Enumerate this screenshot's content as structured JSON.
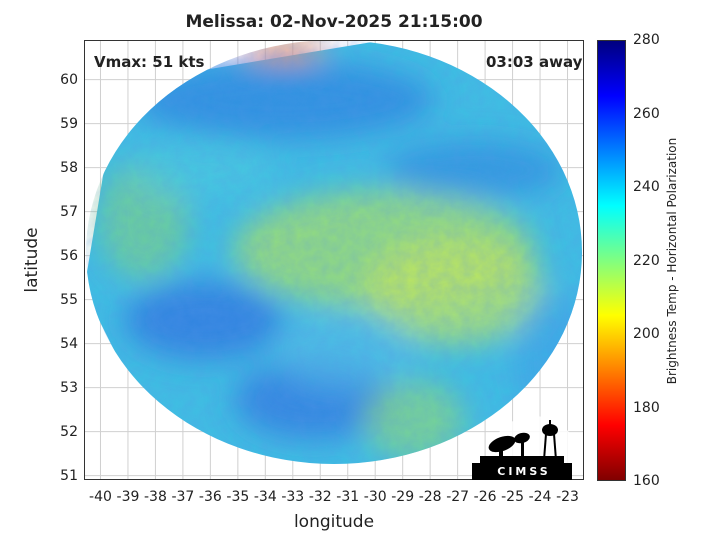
{
  "title": "Melissa: 02-Nov-2025 21:15:00",
  "vmax": "Vmax: 51 kts",
  "away": "03:03 away",
  "colorbar": {
    "label": "Brightness Temp - Horizontal Polarization",
    "ticks": [
      "280",
      "260",
      "240",
      "220",
      "200",
      "180",
      "160"
    ],
    "range": [
      160,
      280
    ],
    "colors": [
      "#800000",
      "#ff0000",
      "#ff8000",
      "#ffff00",
      "#80ff80",
      "#00ffff",
      "#0080ff",
      "#0000ff",
      "#000080"
    ]
  },
  "axes": {
    "xlabel": "longitude",
    "ylabel": "latitude",
    "xticks": [
      "-40",
      "-39",
      "-38",
      "-37",
      "-36",
      "-35",
      "-34",
      "-33",
      "-32",
      "-31",
      "-30",
      "-29",
      "-28",
      "-27",
      "-26",
      "-25",
      "-24",
      "-23"
    ],
    "yticks": [
      "60",
      "59",
      "58",
      "57",
      "56",
      "55",
      "54",
      "53",
      "52",
      "51"
    ],
    "xlim": [
      -40.6,
      -22.4
    ],
    "ylim": [
      50.9,
      60.9
    ]
  },
  "logo": {
    "text": "CIMSS"
  },
  "chart_data": {
    "type": "heatmap",
    "title": "Melissa: 02-Nov-2025 21:15:00",
    "xlabel": "longitude",
    "ylabel": "latitude",
    "xlim": [
      -40.6,
      -22.4
    ],
    "ylim": [
      50.9,
      60.9
    ],
    "colorbar_label": "Brightness Temp - Horizontal Polarization",
    "colorbar_range": [
      160,
      280
    ],
    "grid": true
  }
}
